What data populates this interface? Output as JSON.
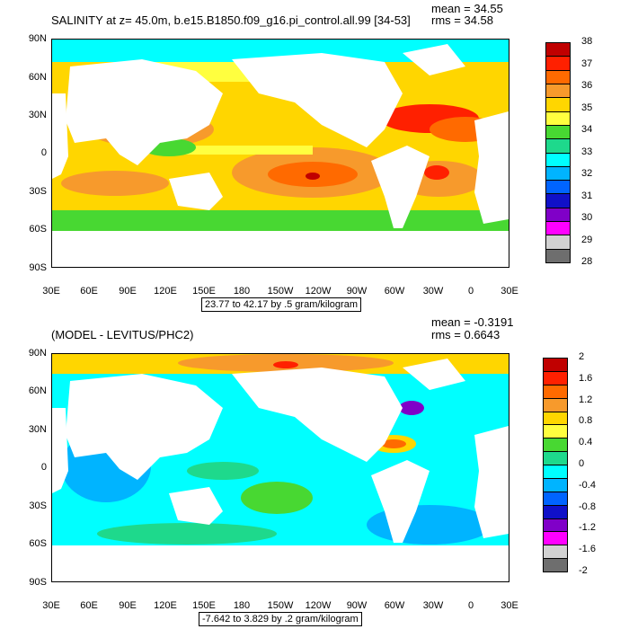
{
  "panel1": {
    "title": "SALINITY at z=  45.0m, b.e15.B1850.f09_g16.pi_control.all.99 [34-53]",
    "mean": "mean = 34.55",
    "rms": "rms = 34.58",
    "range_text": "23.77 to 42.17 by .5 gram/kilogram",
    "colorbar_labels": [
      "38",
      "37",
      "36",
      "35",
      "34",
      "33",
      "32",
      "31",
      "30",
      "29",
      "28"
    ],
    "colorbar_colors": [
      "#c00000",
      "#ff2000",
      "#ff6a00",
      "#f79a2c",
      "#ffd600",
      "#ffff3f",
      "#48d832",
      "#1ed98c",
      "#00ffff",
      "#00b4ff",
      "#0064ff",
      "#1010c8",
      "#8000c8",
      "#ff00ff",
      "#d2d2d2",
      "#6e6e6e"
    ]
  },
  "panel2": {
    "title": "(MODEL - LEVITUS/PHC2)",
    "mean": "mean = -0.3191",
    "rms": "rms = 0.6643",
    "range_text": "-7.642 to 3.829 by .2 gram/kilogram",
    "colorbar_labels": [
      "2",
      "1.6",
      "1.2",
      "0.8",
      "0.4",
      "0",
      "-0.4",
      "-0.8",
      "-1.2",
      "-1.6",
      "-2"
    ],
    "colorbar_colors": [
      "#c00000",
      "#ff2000",
      "#ff6a00",
      "#f79a2c",
      "#ffd600",
      "#ffff3f",
      "#48d832",
      "#1ed98c",
      "#00ffff",
      "#00b4ff",
      "#0064ff",
      "#1010c8",
      "#8000c8",
      "#ff00ff",
      "#d2d2d2",
      "#6e6e6e"
    ]
  },
  "lat_labels": [
    "90N",
    "60N",
    "30N",
    "0",
    "30S",
    "60S",
    "90S"
  ],
  "lon_labels": [
    "30E",
    "60E",
    "90E",
    "120E",
    "150E",
    "180",
    "150W",
    "120W",
    "90W",
    "60W",
    "30W",
    "0",
    "30E"
  ]
}
